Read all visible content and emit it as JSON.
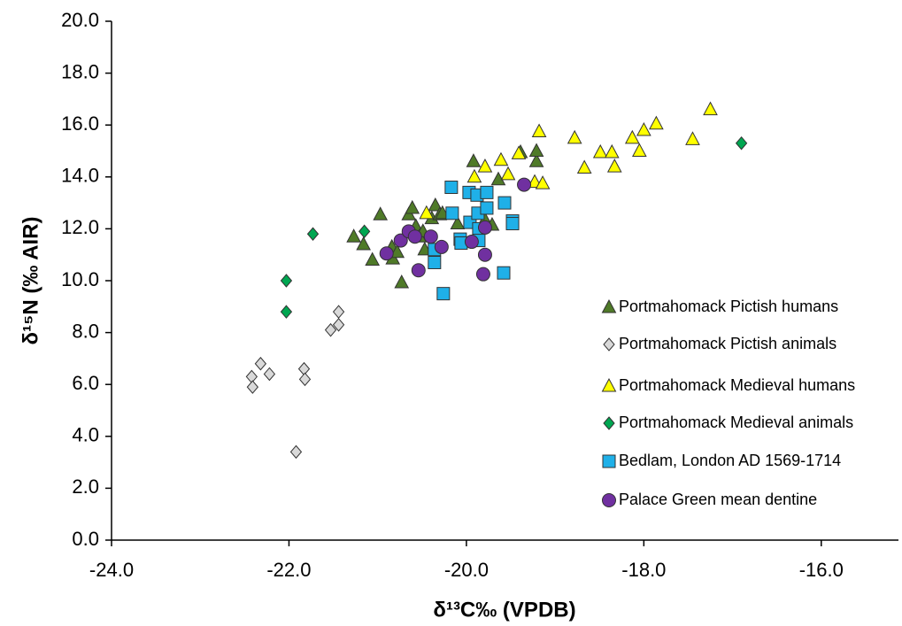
{
  "chart_data": {
    "type": "scatter",
    "x_label": "δ¹³C‰ (VPDB)",
    "y_label": "δ¹⁵N (‰ AIR)",
    "xlim": [
      -24,
      -15.1
    ],
    "ylim": [
      0,
      20
    ],
    "xticks": [
      {
        "value": -24,
        "label": "-24.0"
      },
      {
        "value": -22,
        "label": "-22.0"
      },
      {
        "value": -20,
        "label": "-20.0"
      },
      {
        "value": -18,
        "label": "-18.0"
      },
      {
        "value": -16,
        "label": "-16.0"
      }
    ],
    "yticks": [
      {
        "value": 0,
        "label": "0.0"
      },
      {
        "value": 2,
        "label": "2.0"
      },
      {
        "value": 4,
        "label": "4.0"
      },
      {
        "value": 6,
        "label": "6.0"
      },
      {
        "value": 8,
        "label": "8.0"
      },
      {
        "value": 10,
        "label": "10.0"
      },
      {
        "value": 12,
        "label": "12.0"
      },
      {
        "value": 14,
        "label": "14.0"
      },
      {
        "value": 16,
        "label": "16.0"
      },
      {
        "value": 18,
        "label": "18.0"
      },
      {
        "value": 20,
        "label": "20.0"
      }
    ],
    "grid": false,
    "legend": "bottom-right",
    "series": [
      {
        "name": "Portmahomack Pictish humans",
        "color": "#4f7a28",
        "marker": "triangle",
        "x": [
          -21.27,
          -21.16,
          -21.06,
          -20.97,
          -20.84,
          -20.83,
          -20.78,
          -20.73,
          -20.65,
          -20.61,
          -20.57,
          -20.53,
          -20.49,
          -20.39,
          -20.35,
          -20.3,
          -20.27,
          -20.47,
          -20.1,
          -19.92,
          -19.79,
          -19.71,
          -19.64,
          -19.39,
          -19.21,
          -19.21
        ],
        "values": [
          11.7,
          11.4,
          10.8,
          12.55,
          11.3,
          10.85,
          11.1,
          9.93,
          12.55,
          12.8,
          12.1,
          11.7,
          11.9,
          12.4,
          12.9,
          12.55,
          12.6,
          11.2,
          12.2,
          14.6,
          12.35,
          12.15,
          13.9,
          14.95,
          14.6,
          15.0
        ]
      },
      {
        "name": "Portmahomack Pictish animals",
        "color": "#d9d9d9",
        "marker": "diamond",
        "x": [
          -22.42,
          -22.41,
          -22.32,
          -22.22,
          -21.92,
          -21.83,
          -21.82,
          -21.53,
          -21.44,
          -21.44
        ],
        "values": [
          6.3,
          5.9,
          6.8,
          6.4,
          3.4,
          6.6,
          6.2,
          8.1,
          8.3,
          8.8
        ]
      },
      {
        "name": "Portmahomack Medieval humans",
        "color": "#ffff00",
        "marker": "triangle",
        "x": [
          -20.45,
          -19.91,
          -19.79,
          -19.61,
          -19.53,
          -19.41,
          -19.18,
          -19.23,
          -19.14,
          -18.78,
          -18.67,
          -18.49,
          -18.36,
          -18.33,
          -18.13,
          -18.05,
          -18.0,
          -17.86,
          -17.45,
          -17.25
        ],
        "values": [
          12.6,
          14.0,
          14.4,
          14.65,
          14.1,
          14.9,
          15.75,
          13.8,
          13.75,
          15.5,
          14.35,
          14.95,
          14.95,
          14.4,
          15.5,
          15.0,
          15.8,
          16.05,
          15.45,
          16.6
        ]
      },
      {
        "name": "Portmahomack Medieval animals",
        "color": "#00a651",
        "marker": "diamond",
        "x": [
          -22.03,
          -22.03,
          -21.73,
          -21.15,
          -16.9
        ],
        "values": [
          10.0,
          8.8,
          11.8,
          11.9,
          15.3
        ]
      },
      {
        "name": "Bedlam, London AD 1569-1714",
        "color": "#1fb0e8",
        "marker": "square",
        "x": [
          -20.36,
          -20.36,
          -20.26,
          -20.17,
          -20.16,
          -20.07,
          -20.06,
          -19.97,
          -19.96,
          -19.88,
          -19.87,
          -19.86,
          -19.86,
          -19.77,
          -19.77,
          -19.57,
          -19.48,
          -19.48,
          -19.58
        ],
        "values": [
          11.2,
          10.7,
          9.5,
          13.6,
          12.6,
          11.6,
          11.45,
          13.4,
          12.25,
          13.3,
          12.6,
          12.0,
          11.55,
          13.4,
          12.8,
          13.0,
          12.3,
          12.2,
          10.3
        ]
      },
      {
        "name": "Palace Green mean dentine",
        "color": "#7030a0",
        "marker": "circle",
        "x": [
          -20.9,
          -20.74,
          -20.65,
          -20.58,
          -20.54,
          -20.4,
          -20.28,
          -19.94,
          -19.81,
          -19.79,
          -19.79,
          -19.35
        ],
        "values": [
          11.05,
          11.55,
          11.9,
          11.7,
          10.4,
          11.7,
          11.3,
          11.5,
          10.25,
          11.0,
          12.05,
          13.7
        ]
      }
    ]
  }
}
